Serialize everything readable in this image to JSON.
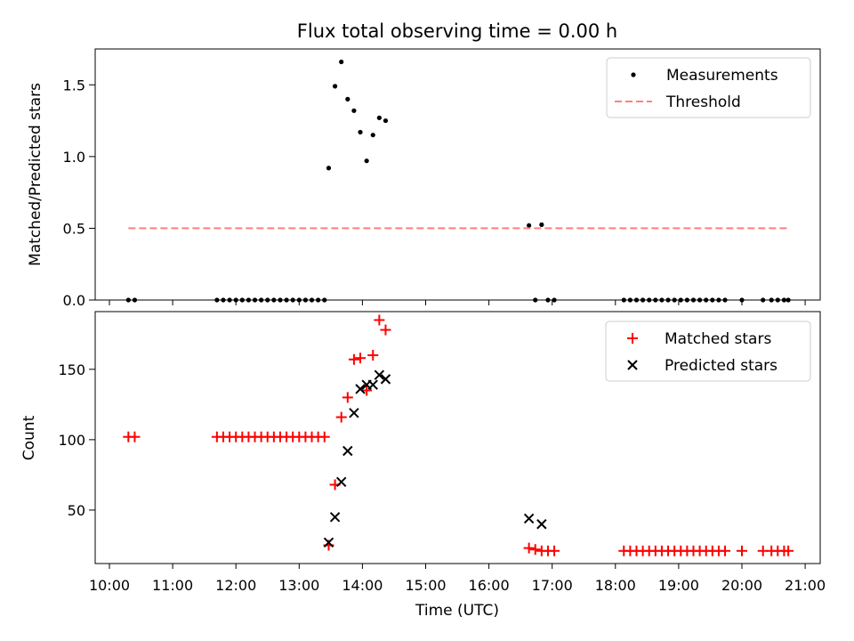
{
  "chart_data": [
    {
      "type": "scatter",
      "title": "Flux total observing time = 0.00 h",
      "xlabel": "",
      "ylabel": "Matched/Predicted stars",
      "xlim": [
        "10:00",
        "21:00"
      ],
      "ylim": [
        0,
        1.75
      ],
      "yticks": [
        0.0,
        0.5,
        1.0,
        1.5
      ],
      "ytick_labels": [
        "0.0",
        "0.5",
        "1.0",
        "1.5"
      ],
      "legend_position": "top-right",
      "series": [
        {
          "name": "Measurements",
          "marker": "dot",
          "color": "#000000",
          "points": [
            [
              "10:18",
              0.0
            ],
            [
              "10:24",
              0.0
            ],
            [
              "11:42",
              0.0
            ],
            [
              "11:48",
              0.0
            ],
            [
              "11:54",
              0.0
            ],
            [
              "12:00",
              0.0
            ],
            [
              "12:06",
              0.0
            ],
            [
              "12:12",
              0.0
            ],
            [
              "12:18",
              0.0
            ],
            [
              "12:24",
              0.0
            ],
            [
              "12:30",
              0.0
            ],
            [
              "12:36",
              0.0
            ],
            [
              "12:42",
              0.0
            ],
            [
              "12:48",
              0.0
            ],
            [
              "12:54",
              0.0
            ],
            [
              "13:00",
              0.0
            ],
            [
              "13:06",
              0.0
            ],
            [
              "13:12",
              0.0
            ],
            [
              "13:18",
              0.0
            ],
            [
              "13:24",
              0.0
            ],
            [
              "13:28",
              0.92
            ],
            [
              "13:34",
              1.49
            ],
            [
              "13:40",
              1.66
            ],
            [
              "13:46",
              1.4
            ],
            [
              "13:52",
              1.32
            ],
            [
              "13:58",
              1.17
            ],
            [
              "14:04",
              0.97
            ],
            [
              "14:10",
              1.15
            ],
            [
              "14:16",
              1.27
            ],
            [
              "14:22",
              1.25
            ],
            [
              "16:38",
              0.52
            ],
            [
              "16:44",
              0.0
            ],
            [
              "16:50",
              0.525
            ],
            [
              "16:56",
              0.0
            ],
            [
              "17:02",
              0.0
            ],
            [
              "18:08",
              0.0
            ],
            [
              "18:14",
              0.0
            ],
            [
              "18:20",
              0.0
            ],
            [
              "18:26",
              0.0
            ],
            [
              "18:32",
              0.0
            ],
            [
              "18:38",
              0.0
            ],
            [
              "18:44",
              0.0
            ],
            [
              "18:50",
              0.0
            ],
            [
              "18:56",
              0.0
            ],
            [
              "19:02",
              0.0
            ],
            [
              "19:08",
              0.0
            ],
            [
              "19:14",
              0.0
            ],
            [
              "19:20",
              0.0
            ],
            [
              "19:26",
              0.0
            ],
            [
              "19:32",
              0.0
            ],
            [
              "19:38",
              0.0
            ],
            [
              "19:44",
              0.0
            ],
            [
              "20:00",
              0.0
            ],
            [
              "20:20",
              0.0
            ],
            [
              "20:28",
              0.0
            ],
            [
              "20:34",
              0.0
            ],
            [
              "20:40",
              0.0
            ],
            [
              "20:44",
              0.0
            ]
          ]
        },
        {
          "name": "Threshold",
          "marker": "dashed-line",
          "color": "#ff7f7f",
          "points": [
            [
              "10:18",
              0.5
            ],
            [
              "20:44",
              0.5
            ]
          ]
        }
      ]
    },
    {
      "type": "scatter",
      "title": "",
      "xlabel": "Time (UTC)",
      "ylabel": "Count",
      "xlim": [
        "10:00",
        "21:00"
      ],
      "ylim": [
        12,
        191
      ],
      "xticks": [
        "10:00",
        "11:00",
        "12:00",
        "13:00",
        "14:00",
        "15:00",
        "16:00",
        "17:00",
        "18:00",
        "19:00",
        "20:00",
        "21:00"
      ],
      "yticks": [
        50,
        100,
        150
      ],
      "ytick_labels": [
        "50",
        "100",
        "150"
      ],
      "legend_position": "top-right",
      "series": [
        {
          "name": "Matched stars",
          "marker": "plus",
          "color": "#ff0000",
          "points": [
            [
              "10:18",
              102
            ],
            [
              "10:24",
              102
            ],
            [
              "11:42",
              102
            ],
            [
              "11:48",
              102
            ],
            [
              "11:54",
              102
            ],
            [
              "12:00",
              102
            ],
            [
              "12:06",
              102
            ],
            [
              "12:12",
              102
            ],
            [
              "12:18",
              102
            ],
            [
              "12:24",
              102
            ],
            [
              "12:30",
              102
            ],
            [
              "12:36",
              102
            ],
            [
              "12:42",
              102
            ],
            [
              "12:48",
              102
            ],
            [
              "12:54",
              102
            ],
            [
              "13:00",
              102
            ],
            [
              "13:06",
              102
            ],
            [
              "13:12",
              102
            ],
            [
              "13:18",
              102
            ],
            [
              "13:24",
              102
            ],
            [
              "13:28",
              25
            ],
            [
              "13:34",
              68
            ],
            [
              "13:40",
              116
            ],
            [
              "13:46",
              130
            ],
            [
              "13:52",
              157
            ],
            [
              "13:58",
              158
            ],
            [
              "14:04",
              135
            ],
            [
              "14:10",
              160
            ],
            [
              "14:16",
              185
            ],
            [
              "14:22",
              178
            ],
            [
              "16:38",
              23
            ],
            [
              "16:44",
              22
            ],
            [
              "16:50",
              21
            ],
            [
              "16:56",
              21
            ],
            [
              "17:02",
              21
            ],
            [
              "18:08",
              21
            ],
            [
              "18:14",
              21
            ],
            [
              "18:20",
              21
            ],
            [
              "18:26",
              21
            ],
            [
              "18:32",
              21
            ],
            [
              "18:38",
              21
            ],
            [
              "18:44",
              21
            ],
            [
              "18:50",
              21
            ],
            [
              "18:56",
              21
            ],
            [
              "19:02",
              21
            ],
            [
              "19:08",
              21
            ],
            [
              "19:14",
              21
            ],
            [
              "19:20",
              21
            ],
            [
              "19:26",
              21
            ],
            [
              "19:32",
              21
            ],
            [
              "19:38",
              21
            ],
            [
              "19:44",
              21
            ],
            [
              "20:00",
              21
            ],
            [
              "20:20",
              21
            ],
            [
              "20:28",
              21
            ],
            [
              "20:34",
              21
            ],
            [
              "20:40",
              21
            ],
            [
              "20:44",
              21
            ]
          ]
        },
        {
          "name": "Predicted stars",
          "marker": "x",
          "color": "#000000",
          "points": [
            [
              "13:28",
              27
            ],
            [
              "13:34",
              45
            ],
            [
              "13:40",
              70
            ],
            [
              "13:46",
              92
            ],
            [
              "13:52",
              119
            ],
            [
              "13:58",
              136
            ],
            [
              "14:04",
              139
            ],
            [
              "14:10",
              139
            ],
            [
              "14:16",
              146
            ],
            [
              "14:22",
              143
            ],
            [
              "16:38",
              44
            ],
            [
              "16:50",
              40
            ]
          ]
        }
      ]
    }
  ]
}
